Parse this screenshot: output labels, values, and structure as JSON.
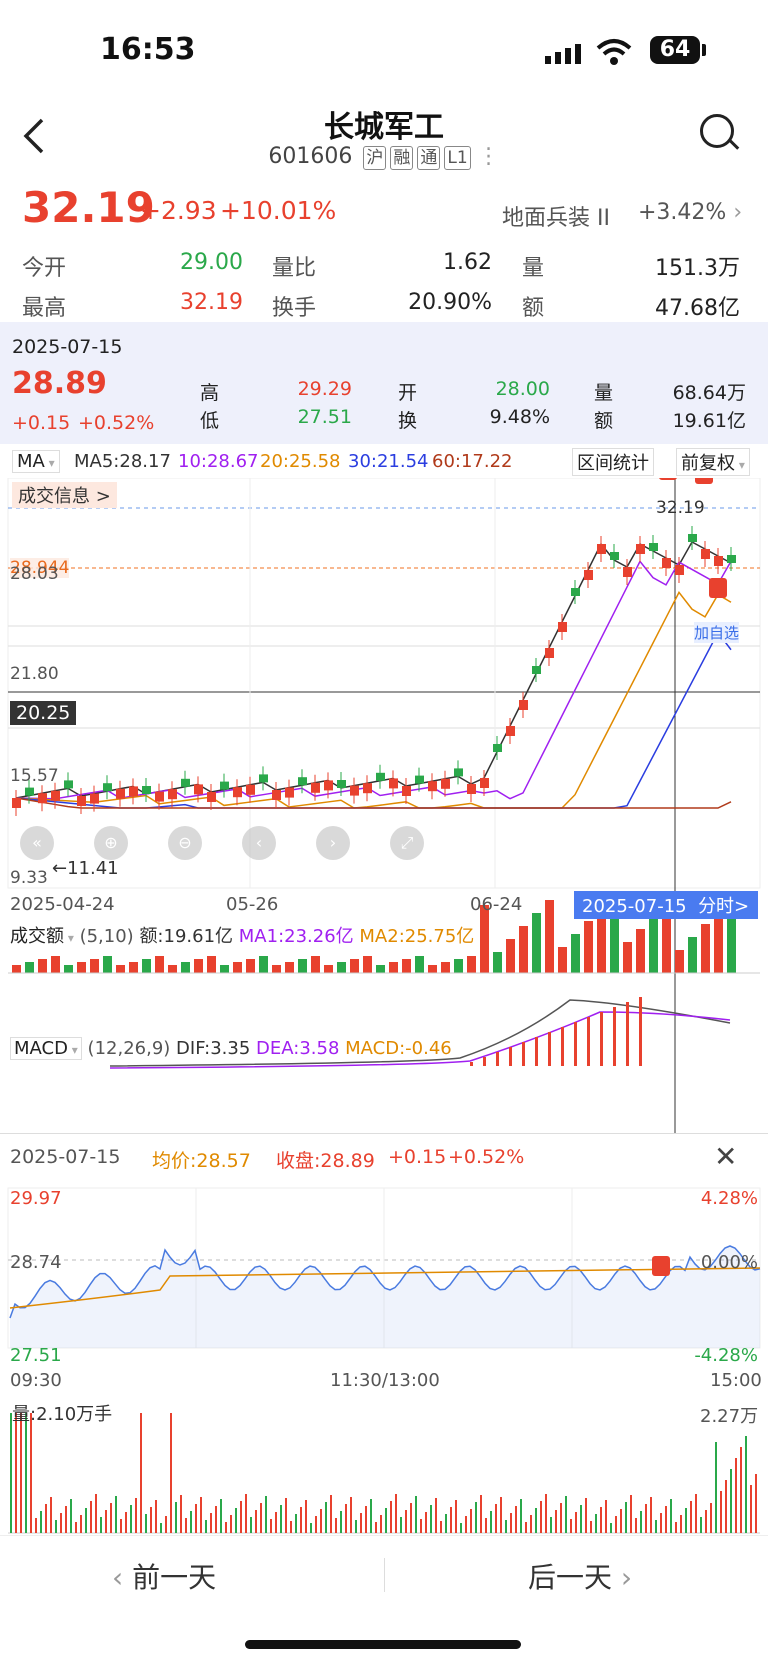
{
  "status": {
    "time": "16:53",
    "battery": "64"
  },
  "nav": {
    "title": "长城军工",
    "code": "601606",
    "tags": [
      "沪",
      "融",
      "通",
      "L1"
    ]
  },
  "quote": {
    "price": "32.19",
    "change": "+2.93",
    "change_pct": "+10.01%",
    "sector_name": "地面兵装 II",
    "sector_chg": "+3.42%",
    "open_label": "今开",
    "open": "29.00",
    "ratio_label": "量比",
    "ratio": "1.62",
    "vol_label": "量",
    "vol": "151.3万",
    "high_label": "最高",
    "high": "32.19",
    "turn_label": "换手",
    "turn": "20.90%",
    "amt_label": "额",
    "amt": "47.68亿"
  },
  "day": {
    "date": "2025-07-15",
    "close": "28.89",
    "chg": "+0.15",
    "chg_pct": "+0.52%",
    "h_label": "高",
    "h": "29.29",
    "l_label": "低",
    "l": "27.51",
    "o_label": "开",
    "o": "28.00",
    "t_label": "换",
    "t": "9.48%",
    "v_label": "量",
    "v": "68.64万",
    "a_label": "额",
    "a": "19.61亿"
  },
  "ma": {
    "type": "MA",
    "ma5": "MA5:28.17",
    "ma10": "10:28.67",
    "ma20": "20:25.58",
    "ma30": "30:21.54",
    "ma60": "60:17.22",
    "range_btn": "区间统计",
    "adj_btn": "前复权"
  },
  "kline": {
    "info_btn": "成交信息 >",
    "y_labels": [
      "28.944",
      "28.03",
      "21.80",
      "15.57",
      "9.33"
    ],
    "crosshair_price": "20.25",
    "high_mark": "32.19",
    "low_mark": "←11.41",
    "add_label": "加自选",
    "x_labels": [
      "2025-04-24",
      "05-26",
      "06-24"
    ],
    "selected_date": "2025-07-15",
    "intraday_btn": "分时>"
  },
  "volume": {
    "title": "成交额",
    "params": "(5,10)",
    "amt": "额:19.61亿",
    "ma1": "MA1:23.26亿",
    "ma2": "MA2:25.75亿"
  },
  "macd": {
    "title": "MACD",
    "params": "(12,26,9)",
    "dif": "DIF:3.35",
    "dea": "DEA:3.58",
    "macd": "MACD:-0.46"
  },
  "intraday": {
    "date": "2025-07-15",
    "avg": "均价:28.57",
    "close": "收盘:28.89",
    "chg": "+0.15",
    "chg_pct": "+0.52%",
    "y_top": "29.97",
    "y_mid": "28.74",
    "y_bot": "27.51",
    "pct_top": "4.28%",
    "pct_mid": "0.00%",
    "pct_bot": "-4.28%",
    "t_start": "09:30",
    "t_mid": "11:30/13:00",
    "t_end": "15:00",
    "vol_label": "量:2.10万手",
    "vol_max": "2.27万"
  },
  "footer": {
    "prev": "前一天",
    "next": "后一天"
  },
  "colors": {
    "up": "#e8412e",
    "down": "#2aa84a",
    "ma5": "#333333",
    "ma10": "#a020f0",
    "ma20": "#e08a00",
    "ma30": "#2b3ee0",
    "ma60": "#b03a1a"
  }
}
